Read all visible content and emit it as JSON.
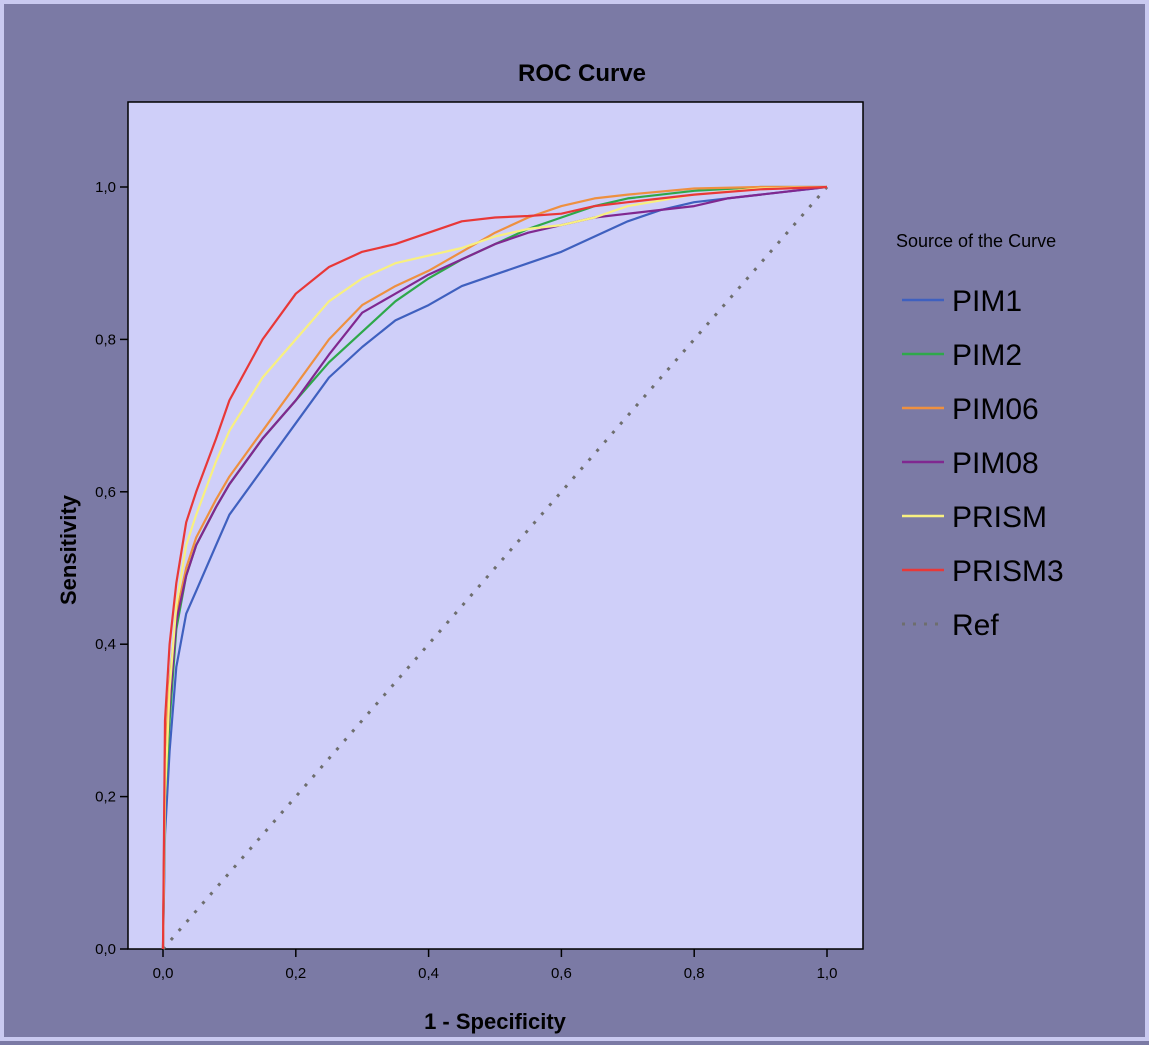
{
  "chart_data": {
    "type": "line",
    "title": "ROC Curve",
    "xlabel": "1 - Specificity",
    "ylabel": "Sensitivity",
    "xlim": [
      0,
      1
    ],
    "ylim": [
      0,
      1
    ],
    "xticks": [
      "0,0",
      "0,2",
      "0,4",
      "0,6",
      "0,8",
      "1,0"
    ],
    "yticks": [
      "0,0",
      "0,2",
      "0,4",
      "0,6",
      "0,8",
      "1,0"
    ],
    "legend_title": "Source of the Curve",
    "legend_position": "right",
    "plot_background": "#cfcff9",
    "series": [
      {
        "name": "PIM1",
        "color": "#3f60bf",
        "x": [
          0,
          0.003,
          0.01,
          0.02,
          0.035,
          0.05,
          0.08,
          0.1,
          0.15,
          0.2,
          0.25,
          0.3,
          0.35,
          0.4,
          0.45,
          0.5,
          0.55,
          0.6,
          0.65,
          0.7,
          0.75,
          0.8,
          0.9,
          1.0
        ],
        "y": [
          0,
          0.15,
          0.26,
          0.37,
          0.44,
          0.47,
          0.53,
          0.57,
          0.63,
          0.69,
          0.75,
          0.79,
          0.825,
          0.845,
          0.87,
          0.885,
          0.9,
          0.915,
          0.935,
          0.955,
          0.97,
          0.98,
          0.99,
          1.0
        ]
      },
      {
        "name": "PIM2",
        "color": "#2ea84a",
        "x": [
          0,
          0.003,
          0.01,
          0.02,
          0.035,
          0.05,
          0.08,
          0.1,
          0.15,
          0.2,
          0.25,
          0.3,
          0.35,
          0.4,
          0.45,
          0.5,
          0.55,
          0.6,
          0.65,
          0.7,
          0.8,
          0.9,
          1.0
        ],
        "y": [
          0,
          0.2,
          0.3,
          0.42,
          0.49,
          0.53,
          0.58,
          0.61,
          0.67,
          0.72,
          0.77,
          0.81,
          0.85,
          0.88,
          0.905,
          0.925,
          0.945,
          0.96,
          0.975,
          0.985,
          0.995,
          1.0,
          1.0
        ]
      },
      {
        "name": "PIM06",
        "color": "#ee9040",
        "x": [
          0,
          0.003,
          0.01,
          0.02,
          0.035,
          0.05,
          0.08,
          0.1,
          0.15,
          0.2,
          0.25,
          0.3,
          0.35,
          0.4,
          0.45,
          0.5,
          0.55,
          0.6,
          0.65,
          0.7,
          0.8,
          0.9,
          1.0
        ],
        "y": [
          0,
          0.25,
          0.35,
          0.44,
          0.5,
          0.54,
          0.59,
          0.62,
          0.68,
          0.74,
          0.8,
          0.845,
          0.87,
          0.89,
          0.915,
          0.94,
          0.96,
          0.975,
          0.985,
          0.99,
          0.998,
          1.0,
          1.0
        ]
      },
      {
        "name": "PIM08",
        "color": "#802890",
        "x": [
          0,
          0.003,
          0.01,
          0.02,
          0.035,
          0.05,
          0.08,
          0.1,
          0.15,
          0.2,
          0.25,
          0.3,
          0.35,
          0.4,
          0.45,
          0.5,
          0.55,
          0.6,
          0.65,
          0.7,
          0.75,
          0.8,
          0.85,
          0.9,
          1.0
        ],
        "y": [
          0,
          0.22,
          0.32,
          0.43,
          0.49,
          0.53,
          0.58,
          0.61,
          0.67,
          0.72,
          0.78,
          0.835,
          0.86,
          0.885,
          0.905,
          0.925,
          0.94,
          0.95,
          0.96,
          0.965,
          0.97,
          0.975,
          0.985,
          0.99,
          1.0
        ]
      },
      {
        "name": "PRISM",
        "color": "#f8f080",
        "x": [
          0,
          0.003,
          0.01,
          0.02,
          0.035,
          0.05,
          0.08,
          0.1,
          0.15,
          0.2,
          0.25,
          0.3,
          0.35,
          0.4,
          0.45,
          0.5,
          0.55,
          0.6,
          0.65,
          0.7,
          0.8,
          0.9,
          1.0
        ],
        "y": [
          0,
          0.2,
          0.34,
          0.45,
          0.53,
          0.57,
          0.64,
          0.68,
          0.75,
          0.8,
          0.85,
          0.88,
          0.9,
          0.91,
          0.92,
          0.935,
          0.945,
          0.95,
          0.96,
          0.975,
          0.99,
          0.998,
          1.0
        ]
      },
      {
        "name": "PRISM3",
        "color": "#e83838",
        "x": [
          0,
          0.003,
          0.01,
          0.02,
          0.035,
          0.05,
          0.08,
          0.1,
          0.15,
          0.2,
          0.25,
          0.3,
          0.35,
          0.4,
          0.45,
          0.5,
          0.55,
          0.6,
          0.65,
          0.7,
          0.8,
          0.9,
          1.0
        ],
        "y": [
          0,
          0.3,
          0.4,
          0.48,
          0.56,
          0.6,
          0.67,
          0.72,
          0.8,
          0.86,
          0.895,
          0.915,
          0.925,
          0.94,
          0.955,
          0.96,
          0.962,
          0.965,
          0.975,
          0.98,
          0.99,
          0.997,
          1.0
        ]
      },
      {
        "name": "Ref",
        "color": "#6e6e6e",
        "dashed": true,
        "x": [
          0,
          1
        ],
        "y": [
          0,
          1
        ]
      }
    ]
  }
}
